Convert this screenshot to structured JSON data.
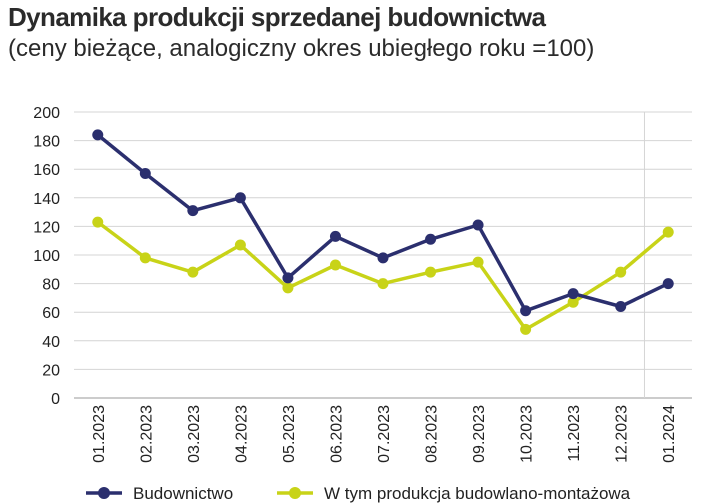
{
  "chart_data": {
    "type": "line",
    "title": "Dynamika produkcji sprzedanej budownictwa",
    "subtitle": "(ceny bieżące, analogiczny okres ubiegłego roku =100)",
    "categories": [
      "01.2023",
      "02.2023",
      "03.2023",
      "04.2023",
      "05.2023",
      "06.2023",
      "07.2023",
      "08.2023",
      "09.2023",
      "10.2023",
      "11.2023",
      "12.2023",
      "01.2024"
    ],
    "ylim": [
      0,
      200
    ],
    "yticks": [
      "0",
      "20",
      "40",
      "60",
      "80",
      "100",
      "120",
      "140",
      "160",
      "180",
      "200"
    ],
    "grid": true,
    "legend_position": "bottom",
    "series": [
      {
        "name": "Budownictwo",
        "color": "#2b2f6e",
        "values": [
          184,
          157,
          131,
          140,
          84,
          113,
          98,
          111,
          121,
          61,
          73,
          64,
          80
        ]
      },
      {
        "name": "W tym produkcja budowlano-montażowa",
        "color": "#c8d318",
        "values": [
          123,
          98,
          88,
          107,
          77,
          93,
          80,
          88,
          95,
          48,
          67,
          88,
          116
        ]
      }
    ]
  }
}
